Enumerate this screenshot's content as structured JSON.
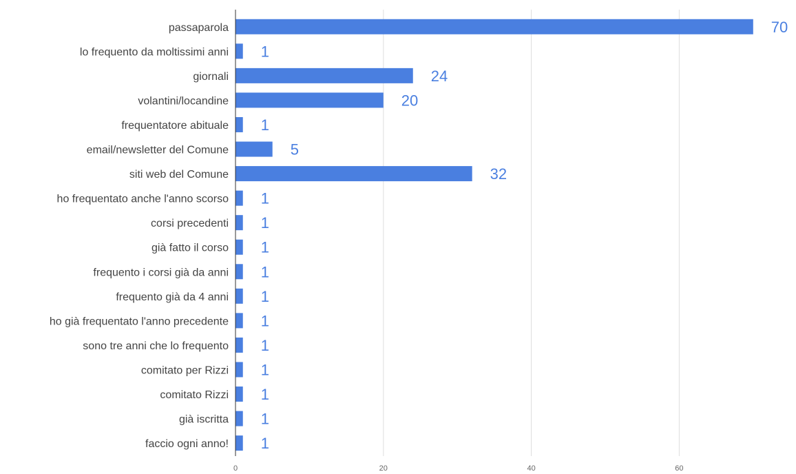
{
  "chart_data": {
    "type": "bar",
    "orientation": "horizontal",
    "categories": [
      "passaparola",
      "lo frequento da moltissimi anni",
      "giornali",
      "volantini/locandine",
      "frequentatore abituale",
      "email/newsletter del Comune",
      "siti web del Comune",
      "ho frequentato anche l'anno scorso",
      "corsi precedenti",
      "già fatto il corso",
      "frequento i corsi già da anni",
      "frequento già da 4 anni",
      "ho già frequentato l'anno precedente",
      "sono tre anni che lo frequento",
      "comitato per Rizzi",
      "comitato Rizzi",
      "già iscritta",
      "faccio ogni anno!"
    ],
    "values": [
      70,
      1,
      24,
      20,
      1,
      5,
      32,
      1,
      1,
      1,
      1,
      1,
      1,
      1,
      1,
      1,
      1,
      1
    ],
    "xlim": [
      0,
      74
    ],
    "xticks": [
      0,
      20,
      40,
      60
    ],
    "xtick_labels": [
      "0",
      "20",
      "40",
      "60"
    ],
    "grid": true,
    "data_labels": true,
    "colors": {
      "bar": "#4a7fe0",
      "value_label": "#4a7fe0",
      "grid": "#dddddd",
      "axis": "#333333"
    }
  }
}
